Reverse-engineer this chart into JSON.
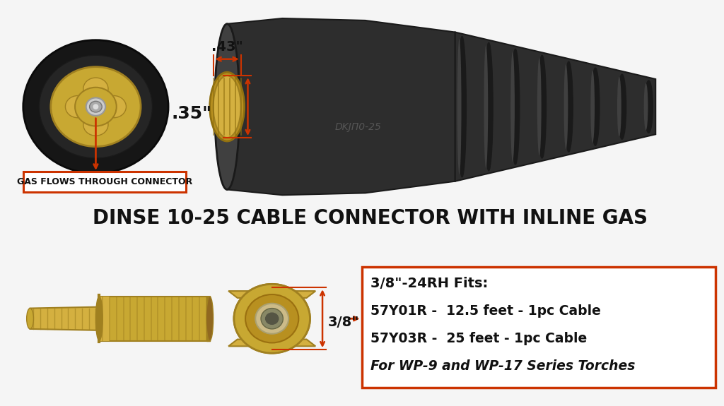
{
  "bg_color": "#f0f0f0",
  "title": "DINSE 10-25 CABLE CONNECTOR WITH INLINE GAS",
  "title_fontsize": 20,
  "label_43": ".43\"",
  "label_35": ".35\"",
  "label_38_top": "3/8\"-24RH Fits:",
  "label_38_side": "3/8\"",
  "label_gas": "GAS FLOWS THROUGH CONNECTOR",
  "info_line1": "57Y01R -  12.5 feet - 1pc Cable",
  "info_line2": "57Y03R -  25 feet - 1pc Cable",
  "info_line3": "For WP-9 and WP-17 Series Torches",
  "red_color": "#cc3300",
  "text_color": "#111111",
  "dkj_label": "DKJП0-25",
  "brass_face": "#c8a832",
  "brass_dark": "#a08020",
  "brass_light": "#d4b040",
  "black_body": "#1a1a1a",
  "black_mid": "#2d2d2d",
  "black_light": "#404040"
}
